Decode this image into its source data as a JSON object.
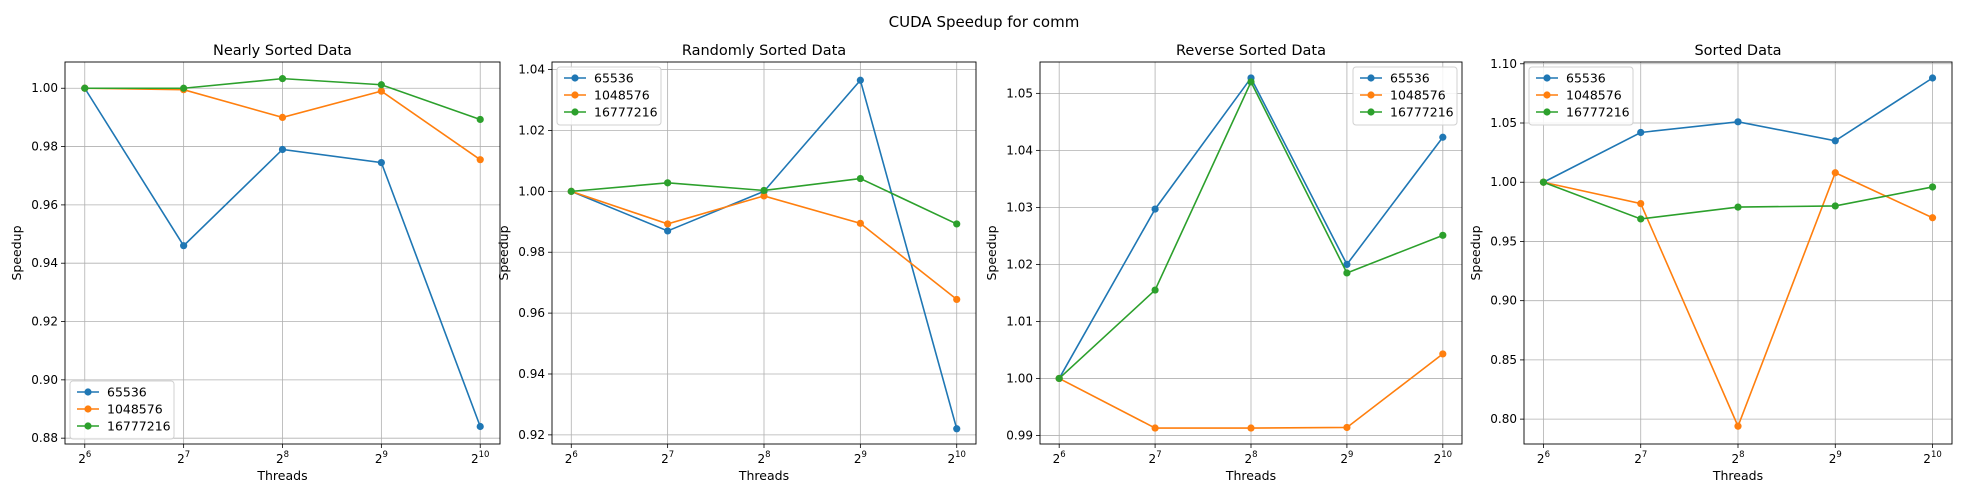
{
  "suptitle": "CUDA Speedup for comm",
  "colors": [
    "#1f77b4",
    "#ff7f0e",
    "#2ca02c"
  ],
  "chart_data": [
    {
      "type": "line",
      "title": "Nearly Sorted Data",
      "xlabel": "Threads",
      "ylabel": "Speedup",
      "x": [
        6,
        7,
        8,
        9,
        10
      ],
      "xticks": [
        {
          "base": "2",
          "exp": "6"
        },
        {
          "base": "2",
          "exp": "7"
        },
        {
          "base": "2",
          "exp": "8"
        },
        {
          "base": "2",
          "exp": "9"
        },
        {
          "base": "2",
          "exp": "10"
        }
      ],
      "ylim": [
        0.878,
        1.009
      ],
      "yticks": [
        "0.88",
        "0.90",
        "0.92",
        "0.94",
        "0.96",
        "0.98",
        "1.00"
      ],
      "grid": true,
      "legend": "lower-left",
      "series": [
        {
          "name": "65536",
          "values": [
            1.0,
            0.946,
            0.979,
            0.9745,
            0.884
          ]
        },
        {
          "name": "1048576",
          "values": [
            1.0,
            0.9995,
            0.99,
            0.999,
            0.9755
          ]
        },
        {
          "name": "16777216",
          "values": [
            1.0,
            1.0,
            1.0033,
            1.0012,
            0.9893
          ]
        }
      ]
    },
    {
      "type": "line",
      "title": "Randomly Sorted Data",
      "xlabel": "Threads",
      "ylabel": "Speedup",
      "x": [
        6,
        7,
        8,
        9,
        10
      ],
      "xticks": [
        {
          "base": "2",
          "exp": "6"
        },
        {
          "base": "2",
          "exp": "7"
        },
        {
          "base": "2",
          "exp": "8"
        },
        {
          "base": "2",
          "exp": "9"
        },
        {
          "base": "2",
          "exp": "10"
        }
      ],
      "ylim": [
        0.917,
        1.0425
      ],
      "yticks": [
        "0.92",
        "0.94",
        "0.96",
        "0.98",
        "1.00",
        "1.02",
        "1.04"
      ],
      "grid": true,
      "legend": "upper-left",
      "series": [
        {
          "name": "65536",
          "values": [
            1.0,
            0.987,
            1.0,
            1.0365,
            0.922
          ]
        },
        {
          "name": "1048576",
          "values": [
            1.0,
            0.9893,
            0.9985,
            0.9895,
            0.9645
          ]
        },
        {
          "name": "16777216",
          "values": [
            1.0,
            1.0028,
            1.0003,
            1.0042,
            0.9893
          ]
        }
      ]
    },
    {
      "type": "line",
      "title": "Reverse Sorted Data",
      "xlabel": "Threads",
      "ylabel": "Speedup",
      "x": [
        6,
        7,
        8,
        9,
        10
      ],
      "xticks": [
        {
          "base": "2",
          "exp": "6"
        },
        {
          "base": "2",
          "exp": "7"
        },
        {
          "base": "2",
          "exp": "8"
        },
        {
          "base": "2",
          "exp": "9"
        },
        {
          "base": "2",
          "exp": "10"
        }
      ],
      "ylim": [
        0.9885,
        1.0555
      ],
      "yticks": [
        "0.99",
        "1.00",
        "1.01",
        "1.02",
        "1.03",
        "1.04",
        "1.05"
      ],
      "grid": true,
      "legend": "upper-right",
      "series": [
        {
          "name": "65536",
          "values": [
            1.0,
            1.0297,
            1.0527,
            1.02,
            1.0423
          ]
        },
        {
          "name": "1048576",
          "values": [
            1.0,
            0.9913,
            0.9913,
            0.9914,
            1.0043
          ]
        },
        {
          "name": "16777216",
          "values": [
            1.0,
            1.0155,
            1.052,
            1.0185,
            1.0251
          ]
        }
      ]
    },
    {
      "type": "line",
      "title": "Sorted Data",
      "xlabel": "Threads",
      "ylabel": "Speedup",
      "x": [
        6,
        7,
        8,
        9,
        10
      ],
      "xticks": [
        {
          "base": "2",
          "exp": "6"
        },
        {
          "base": "2",
          "exp": "7"
        },
        {
          "base": "2",
          "exp": "8"
        },
        {
          "base": "2",
          "exp": "9"
        },
        {
          "base": "2",
          "exp": "10"
        }
      ],
      "ylim": [
        0.779,
        1.1015
      ],
      "yticks": [
        "0.80",
        "0.85",
        "0.90",
        "0.95",
        "1.00",
        "1.05",
        "1.10"
      ],
      "grid": true,
      "legend": "upper-left",
      "series": [
        {
          "name": "65536",
          "values": [
            1.0,
            1.042,
            1.051,
            1.035,
            1.088
          ]
        },
        {
          "name": "1048576",
          "values": [
            1.0,
            0.982,
            0.794,
            1.008,
            0.97
          ]
        },
        {
          "name": "16777216",
          "values": [
            1.0,
            0.969,
            0.979,
            0.98,
            0.996
          ]
        }
      ]
    }
  ]
}
